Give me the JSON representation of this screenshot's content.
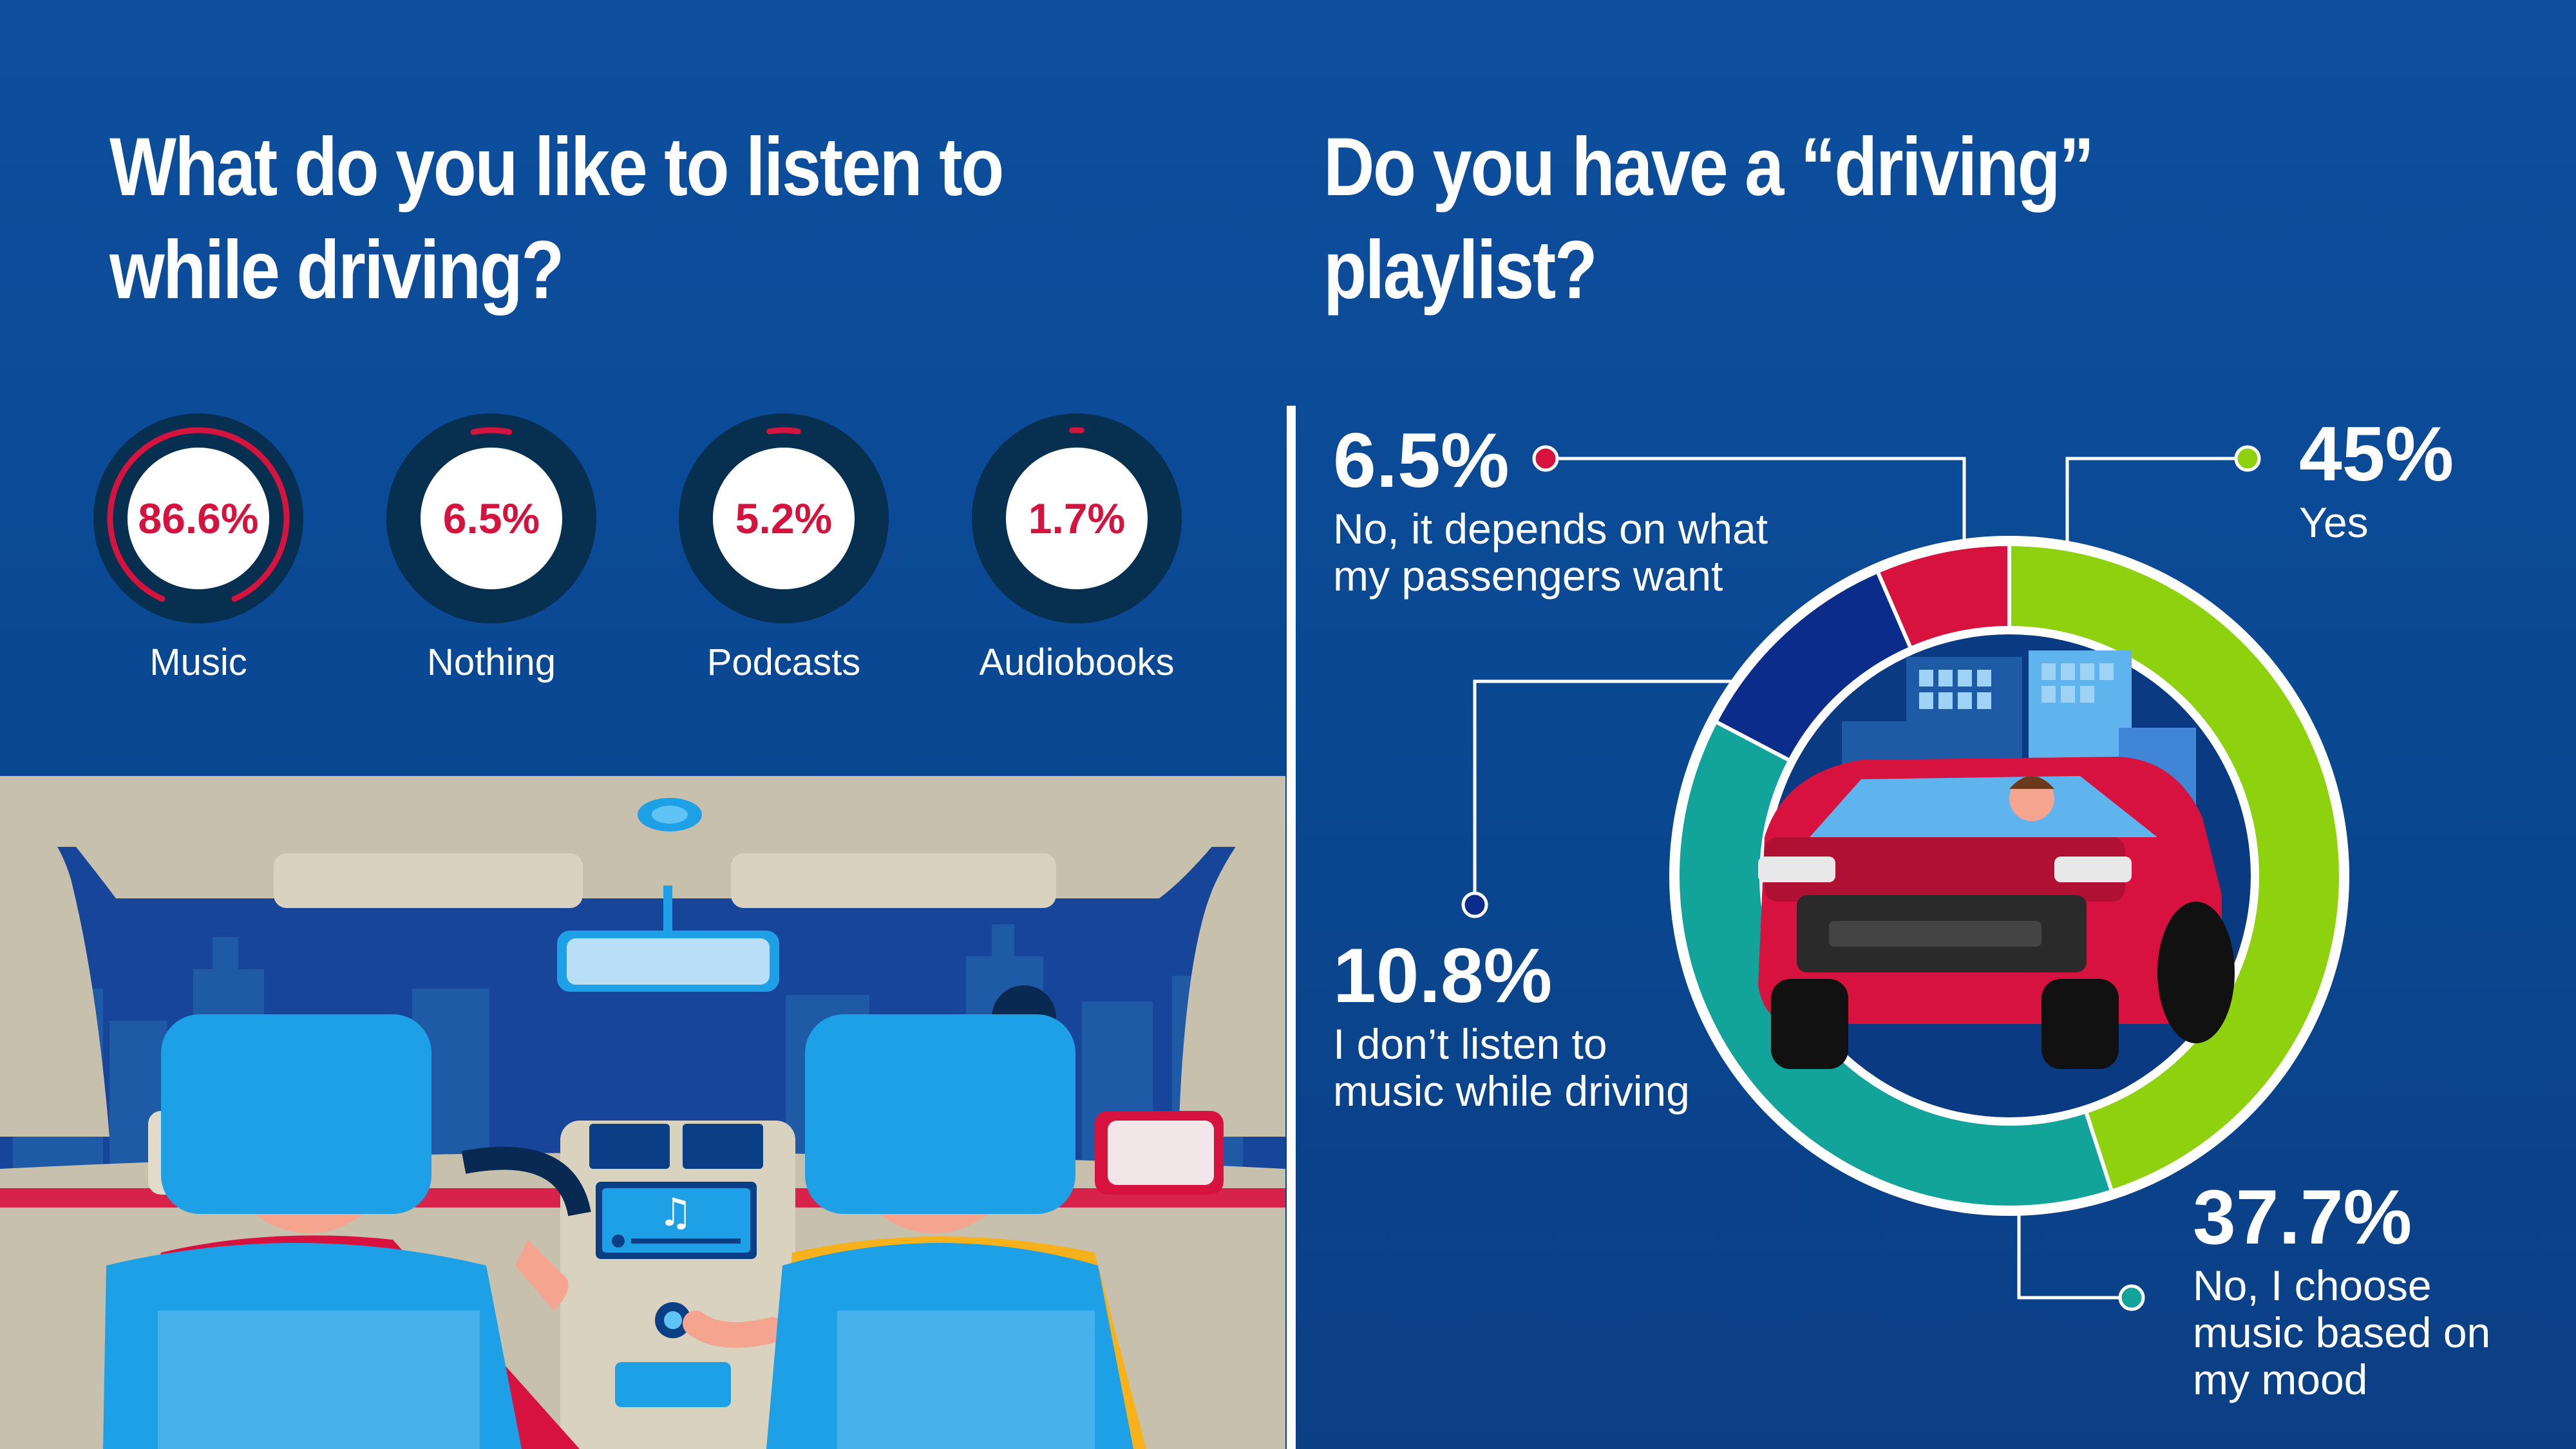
{
  "left_title": "What do you like to listen to while driving?",
  "right_title": "Do you have a “driving” playlist?",
  "colors": {
    "background": "#0d4f9e",
    "gauge_ring": "#072f4f",
    "gauge_arc": "#d4143f",
    "gauge_text": "#d4143f",
    "red": "#d8123e",
    "navy": "#0c2c8c",
    "teal": "#12a39b",
    "green": "#8dd10f"
  },
  "chart_data": [
    {
      "type": "gauge",
      "items": [
        {
          "label": "Music",
          "value": 86.6,
          "display": "86.6%"
        },
        {
          "label": "Nothing",
          "value": 6.5,
          "display": "6.5%"
        },
        {
          "label": "Podcasts",
          "value": 5.2,
          "display": "5.2%"
        },
        {
          "label": "Audiobooks",
          "value": 1.7,
          "display": "1.7%"
        }
      ]
    },
    {
      "type": "pie",
      "slices": [
        {
          "value": 45,
          "display": "45%",
          "label": "Yes",
          "color": "#8dd10f"
        },
        {
          "value": 37.7,
          "display": "37.7%",
          "label": "No, I choose music based on my mood",
          "color": "#12a39b"
        },
        {
          "value": 10.8,
          "display": "10.8%",
          "label": "I don’t listen to music while driving",
          "color": "#0c2c8c"
        },
        {
          "value": 6.5,
          "display": "6.5%",
          "label": "No, it depends on what my passengers want",
          "color": "#d8123e"
        }
      ]
    }
  ],
  "callouts": [
    {
      "pct": "6.5%",
      "text": "No, it depends on what my passengers want"
    },
    {
      "pct": "45%",
      "text": "Yes"
    },
    {
      "pct": "10.8%",
      "text": "I don’t listen to music while driving"
    },
    {
      "pct": "37.7%",
      "text": "No, I choose music based on my mood"
    }
  ]
}
